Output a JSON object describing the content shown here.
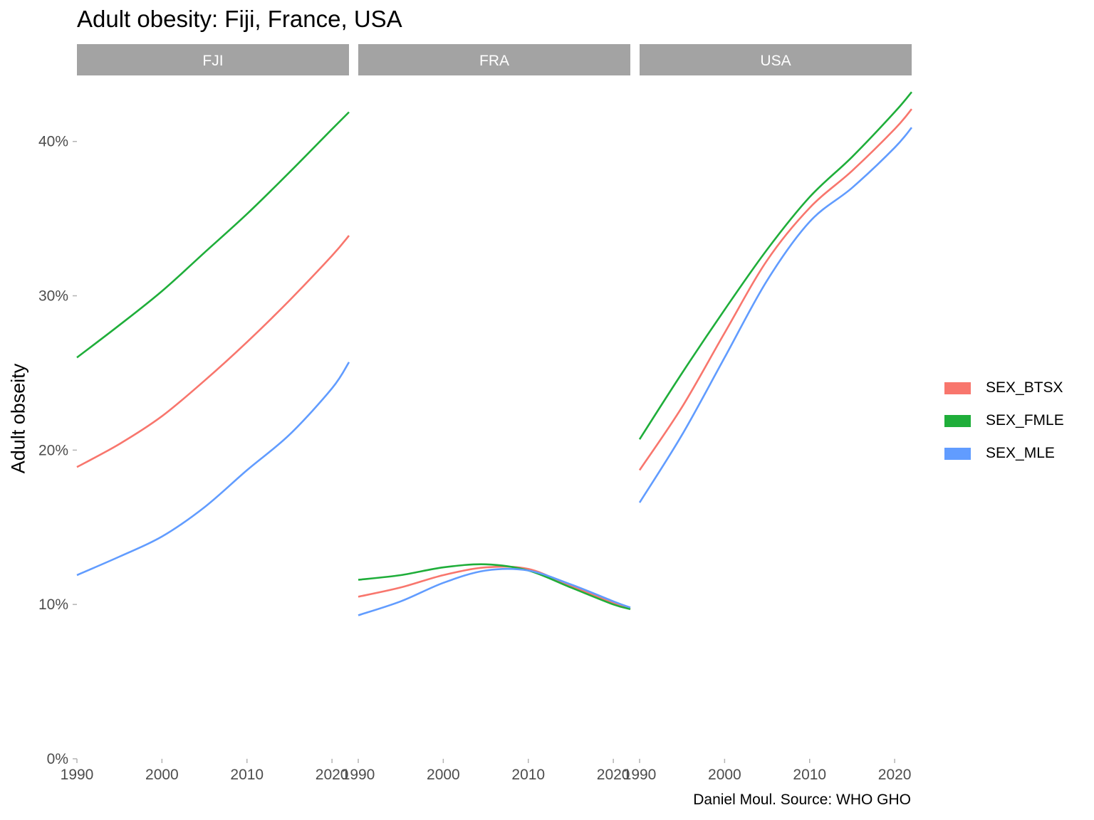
{
  "chart_data": {
    "type": "line",
    "title": "Adult obesity: Fiji, France, USA",
    "ylabel": "Adult obseity",
    "xlabel": "",
    "caption": "Daniel Moul. Source: WHO GHO",
    "ylim": [
      0,
      0.4
    ],
    "y_ticks": [
      "0%",
      "10%",
      "20%",
      "30%",
      "40%"
    ],
    "x_ticks": [
      "1990",
      "2000",
      "2010",
      "2020"
    ],
    "xlim": [
      1990,
      2022
    ],
    "grid": false,
    "legend_position": "right",
    "series_colors": {
      "SEX_BTSX": "#F8766D",
      "SEX_FMLE": "#1FAE3A",
      "SEX_MLE": "#619CFF"
    },
    "legend": [
      "SEX_BTSX",
      "SEX_FMLE",
      "SEX_MLE"
    ],
    "x": [
      1990,
      1995,
      2000,
      2005,
      2010,
      2015,
      2020,
      2022
    ],
    "facets": [
      {
        "label": "FJI",
        "series": [
          {
            "name": "SEX_BTSX",
            "values": [
              0.189,
              0.204,
              0.222,
              0.245,
              0.27,
              0.297,
              0.326,
              0.339
            ]
          },
          {
            "name": "SEX_FMLE",
            "values": [
              0.26,
              0.281,
              0.303,
              0.328,
              0.353,
              0.38,
              0.408,
              0.419
            ]
          },
          {
            "name": "SEX_MLE",
            "values": [
              0.119,
              0.131,
              0.144,
              0.163,
              0.187,
              0.21,
              0.24,
              0.257
            ]
          }
        ]
      },
      {
        "label": "FRA",
        "series": [
          {
            "name": "SEX_BTSX",
            "values": [
              0.105,
              0.111,
              0.119,
              0.124,
              0.123,
              0.112,
              0.101,
              0.097
            ]
          },
          {
            "name": "SEX_FMLE",
            "values": [
              0.116,
              0.119,
              0.124,
              0.126,
              0.122,
              0.111,
              0.1,
              0.097
            ]
          },
          {
            "name": "SEX_MLE",
            "values": [
              0.093,
              0.102,
              0.114,
              0.122,
              0.122,
              0.113,
              0.102,
              0.098
            ]
          }
        ]
      },
      {
        "label": "USA",
        "series": [
          {
            "name": "SEX_BTSX",
            "values": [
              0.187,
              0.228,
              0.276,
              0.323,
              0.357,
              0.381,
              0.408,
              0.421
            ]
          },
          {
            "name": "SEX_FMLE",
            "values": [
              0.207,
              0.25,
              0.291,
              0.33,
              0.364,
              0.39,
              0.419,
              0.432
            ]
          },
          {
            "name": "SEX_MLE",
            "values": [
              0.166,
              0.21,
              0.26,
              0.31,
              0.348,
              0.37,
              0.396,
              0.409
            ]
          }
        ]
      }
    ]
  }
}
